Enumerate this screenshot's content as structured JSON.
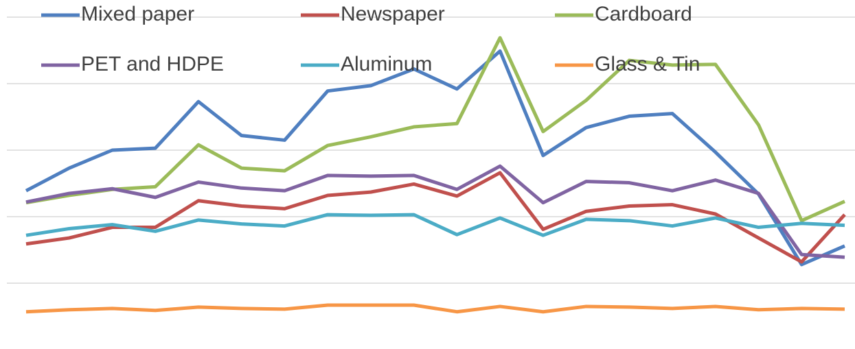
{
  "chart_data": {
    "type": "line",
    "categories": [
      null,
      null,
      null,
      null,
      null,
      null,
      null,
      null,
      null,
      null,
      null,
      null,
      null,
      null,
      null,
      null,
      null,
      null,
      null,
      null
    ],
    "ylim": [
      0,
      5
    ],
    "yticks": [
      1,
      2,
      3,
      4,
      5
    ],
    "grid": true,
    "legend": "top",
    "series": [
      {
        "name": "Mixed paper",
        "color": "#4f7fc0",
        "values": [
          2.39,
          2.73,
          3.0,
          3.03,
          3.73,
          3.22,
          3.15,
          3.89,
          3.97,
          4.22,
          3.92,
          4.49,
          2.92,
          3.34,
          3.51,
          3.55,
          2.97,
          2.34,
          1.28,
          1.56
        ]
      },
      {
        "name": "Newspaper",
        "color": "#c0504d",
        "values": [
          1.59,
          1.68,
          1.84,
          1.84,
          2.24,
          2.16,
          2.12,
          2.32,
          2.37,
          2.49,
          2.31,
          2.66,
          1.81,
          2.08,
          2.16,
          2.18,
          2.04,
          1.68,
          1.32,
          2.03
        ]
      },
      {
        "name": "Cardboard",
        "color": "#9bbb59",
        "values": [
          2.21,
          2.32,
          2.41,
          2.45,
          3.08,
          2.73,
          2.69,
          3.07,
          3.2,
          3.35,
          3.4,
          4.69,
          3.28,
          3.75,
          4.35,
          4.28,
          4.29,
          3.38,
          1.94,
          2.23
        ]
      },
      {
        "name": "PET and HDPE",
        "color": "#8064a2",
        "values": [
          2.22,
          2.35,
          2.42,
          2.29,
          2.52,
          2.43,
          2.39,
          2.62,
          2.61,
          2.62,
          2.41,
          2.76,
          2.21,
          2.53,
          2.51,
          2.39,
          2.55,
          2.35,
          1.43,
          1.39
        ]
      },
      {
        "name": "Aluminum",
        "color": "#4bacc6",
        "values": [
          1.72,
          1.82,
          1.88,
          1.78,
          1.95,
          1.89,
          1.86,
          2.03,
          2.02,
          2.03,
          1.73,
          1.98,
          1.72,
          1.96,
          1.94,
          1.86,
          1.98,
          1.84,
          1.9,
          1.87
        ]
      },
      {
        "name": "Glass & Tin",
        "color": "#f79646",
        "values": [
          0.57,
          0.6,
          0.62,
          0.59,
          0.64,
          0.62,
          0.61,
          0.67,
          0.67,
          0.67,
          0.57,
          0.65,
          0.57,
          0.65,
          0.64,
          0.62,
          0.65,
          0.6,
          0.62,
          0.61
        ]
      }
    ]
  }
}
